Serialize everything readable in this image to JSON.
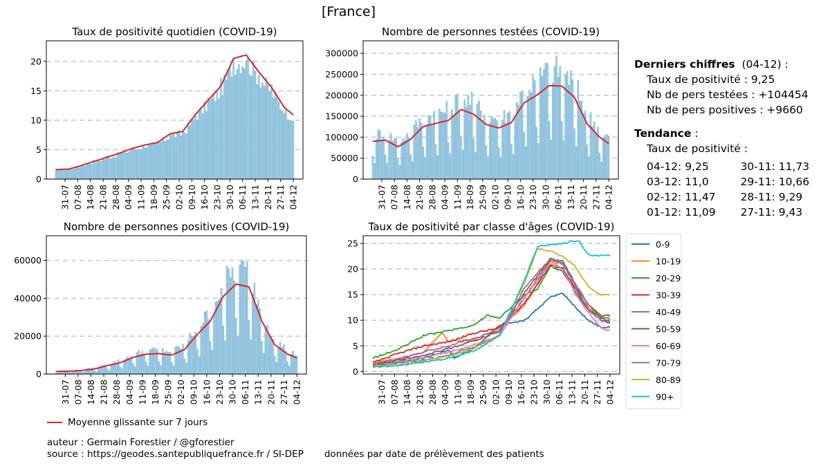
{
  "suptitle": "[France]",
  "colors": {
    "bar": "#9ecae1",
    "bar_edge": "#6baed6",
    "rolling": "#d62728",
    "grid": "#c8c8c8"
  },
  "date_ticks": [
    "31-07",
    "07-08",
    "14-08",
    "21-08",
    "28-08",
    "04-09",
    "11-09",
    "18-09",
    "25-09",
    "02-10",
    "09-10",
    "16-10",
    "23-10",
    "30-10",
    "06-11",
    "13-11",
    "20-11",
    "27-11",
    "04-12"
  ],
  "chart_data": [
    {
      "type": "bar",
      "title": "Taux de positivité quotidien (COVID-19)",
      "ylim": [
        0,
        23.5
      ],
      "yticks": [
        0,
        5,
        10,
        15,
        20
      ],
      "grid": true,
      "x_start": "2020-07-26",
      "x_end": "2020-12-04",
      "rolling_label": "Moyenne glissante sur 7 jours",
      "anchors": [
        [
          0,
          1.6
        ],
        [
          7,
          1.7
        ],
        [
          14,
          2.3
        ],
        [
          21,
          3.0
        ],
        [
          28,
          3.7
        ],
        [
          35,
          4.4
        ],
        [
          42,
          5.2
        ],
        [
          49,
          5.8
        ],
        [
          56,
          6.2
        ],
        [
          63,
          7.7
        ],
        [
          70,
          8.1
        ],
        [
          77,
          11.0
        ],
        [
          84,
          13.4
        ],
        [
          91,
          15.8
        ],
        [
          98,
          20.5
        ],
        [
          105,
          21.1
        ],
        [
          112,
          18.2
        ],
        [
          119,
          15.6
        ],
        [
          126,
          12.2
        ],
        [
          131,
          10.9
        ],
        [
          133,
          10.8
        ]
      ]
    },
    {
      "type": "bar",
      "title": "Nombre de personnes testées (COVID-19)",
      "ylim": [
        0,
        330000
      ],
      "yticks": [
        0,
        50000,
        100000,
        150000,
        200000,
        250000,
        300000
      ],
      "grid": true,
      "x_start": "2020-07-26",
      "x_end": "2020-12-04",
      "anchors": [
        [
          0,
          90000
        ],
        [
          7,
          93000
        ],
        [
          14,
          77000
        ],
        [
          21,
          95000
        ],
        [
          28,
          125000
        ],
        [
          35,
          133000
        ],
        [
          42,
          140000
        ],
        [
          49,
          166000
        ],
        [
          56,
          155000
        ],
        [
          63,
          130000
        ],
        [
          70,
          122000
        ],
        [
          77,
          135000
        ],
        [
          84,
          182000
        ],
        [
          91,
          200000
        ],
        [
          98,
          223000
        ],
        [
          105,
          222000
        ],
        [
          112,
          195000
        ],
        [
          119,
          132000
        ],
        [
          126,
          100000
        ],
        [
          131,
          85000
        ],
        [
          133,
          78000
        ]
      ]
    },
    {
      "type": "bar",
      "title": "Nombre de personnes positives (COVID-19)",
      "ylim": [
        0,
        73000
      ],
      "yticks": [
        0,
        20000,
        40000,
        60000
      ],
      "grid": true,
      "x_start": "2020-07-26",
      "x_end": "2020-12-04",
      "anchors": [
        [
          0,
          1400
        ],
        [
          7,
          1500
        ],
        [
          14,
          1900
        ],
        [
          21,
          2700
        ],
        [
          28,
          4500
        ],
        [
          35,
          6000
        ],
        [
          42,
          8800
        ],
        [
          49,
          10500
        ],
        [
          56,
          10800
        ],
        [
          63,
          10000
        ],
        [
          70,
          13000
        ],
        [
          77,
          21000
        ],
        [
          84,
          28000
        ],
        [
          91,
          41000
        ],
        [
          98,
          47500
        ],
        [
          105,
          46000
        ],
        [
          112,
          28000
        ],
        [
          119,
          15500
        ],
        [
          126,
          10500
        ],
        [
          131,
          8600
        ],
        [
          133,
          8300
        ]
      ]
    },
    {
      "type": "line",
      "title": "Taux de positivité par classe d'âges (COVID-19)",
      "ylim": [
        -0.5,
        26.5
      ],
      "yticks": [
        0,
        5,
        10,
        15,
        20,
        25
      ],
      "grid": true,
      "x_start": "2020-07-26",
      "x_end": "2020-12-04",
      "legend_position": "outside-right",
      "series": [
        {
          "name": "0-9",
          "color": "#1f77b4",
          "anchors": [
            [
              0,
              1.2
            ],
            [
              28,
              2.6
            ],
            [
              42,
              4.2
            ],
            [
              45,
              2.6
            ],
            [
              56,
              4.5
            ],
            [
              70,
              9.0
            ],
            [
              84,
              10.0
            ],
            [
              98,
              14.5
            ],
            [
              105,
              15.3
            ],
            [
              112,
              12.5
            ],
            [
              119,
              10.0
            ],
            [
              126,
              8.6
            ],
            [
              133,
              8.7
            ]
          ]
        },
        {
          "name": "10-19",
          "color": "#ff7f0e",
          "anchors": [
            [
              0,
              1.8
            ],
            [
              14,
              2.5
            ],
            [
              28,
              3.8
            ],
            [
              38,
              7.5
            ],
            [
              42,
              6.0
            ],
            [
              56,
              6.2
            ],
            [
              70,
              8.5
            ],
            [
              84,
              13.0
            ],
            [
              98,
              21.5
            ],
            [
              105,
              20.0
            ],
            [
              112,
              16.0
            ],
            [
              119,
              12.5
            ],
            [
              126,
              11.0
            ],
            [
              133,
              10.9
            ]
          ]
        },
        {
          "name": "20-29",
          "color": "#2ca02c",
          "anchors": [
            [
              0,
              2.6
            ],
            [
              14,
              4.3
            ],
            [
              28,
              7.0
            ],
            [
              42,
              8.0
            ],
            [
              56,
              9.0
            ],
            [
              63,
              11.0
            ],
            [
              70,
              10.5
            ],
            [
              84,
              15.0
            ],
            [
              91,
              16.0
            ],
            [
              98,
              20.5
            ],
            [
              105,
              19.5
            ],
            [
              112,
              15.5
            ],
            [
              119,
              12.0
            ],
            [
              126,
              10.5
            ],
            [
              133,
              10.2
            ]
          ]
        },
        {
          "name": "30-39",
          "color": "#d62728",
          "anchors": [
            [
              0,
              1.7
            ],
            [
              14,
              3.5
            ],
            [
              28,
              5.0
            ],
            [
              42,
              5.8
            ],
            [
              56,
              7.5
            ],
            [
              70,
              8.5
            ],
            [
              84,
              13.5
            ],
            [
              98,
              20.7
            ],
            [
              105,
              20.2
            ],
            [
              112,
              16.0
            ],
            [
              119,
              12.0
            ],
            [
              126,
              10.0
            ],
            [
              133,
              9.2
            ]
          ]
        },
        {
          "name": "40-49",
          "color": "#9467bd",
          "anchors": [
            [
              0,
              1.4
            ],
            [
              14,
              2.4
            ],
            [
              28,
              3.8
            ],
            [
              42,
              5.0
            ],
            [
              56,
              6.5
            ],
            [
              70,
              8.0
            ],
            [
              84,
              14.5
            ],
            [
              98,
              21.8
            ],
            [
              105,
              21.0
            ],
            [
              112,
              16.5
            ],
            [
              119,
              12.0
            ],
            [
              126,
              10.0
            ],
            [
              133,
              9.0
            ]
          ]
        },
        {
          "name": "50-59",
          "color": "#8c564b",
          "anchors": [
            [
              0,
              1.3
            ],
            [
              14,
              2.2
            ],
            [
              28,
              3.2
            ],
            [
              42,
              4.5
            ],
            [
              56,
              6.0
            ],
            [
              70,
              7.8
            ],
            [
              84,
              15.5
            ],
            [
              98,
              21.9
            ],
            [
              105,
              21.5
            ],
            [
              112,
              17.0
            ],
            [
              119,
              13.0
            ],
            [
              126,
              10.5
            ],
            [
              133,
              9.5
            ]
          ]
        },
        {
          "name": "60-69",
          "color": "#e377c2",
          "anchors": [
            [
              0,
              1.1
            ],
            [
              14,
              1.8
            ],
            [
              28,
              2.8
            ],
            [
              42,
              3.8
            ],
            [
              56,
              5.2
            ],
            [
              70,
              7.0
            ],
            [
              84,
              14.5
            ],
            [
              98,
              21.0
            ],
            [
              105,
              20.0
            ],
            [
              112,
              15.0
            ],
            [
              119,
              11.5
            ],
            [
              126,
              8.5
            ],
            [
              133,
              7.7
            ]
          ]
        },
        {
          "name": "70-79",
          "color": "#7f7f7f",
          "anchors": [
            [
              0,
              1.0
            ],
            [
              14,
              1.6
            ],
            [
              28,
              2.2
            ],
            [
              42,
              3.2
            ],
            [
              56,
              4.8
            ],
            [
              70,
              7.0
            ],
            [
              84,
              16.5
            ],
            [
              98,
              22.0
            ],
            [
              105,
              21.0
            ],
            [
              112,
              17.0
            ],
            [
              119,
              13.0
            ],
            [
              126,
              11.0
            ],
            [
              133,
              10.8
            ]
          ]
        },
        {
          "name": "80-89",
          "color": "#bcbd22",
          "anchors": [
            [
              0,
              0.9
            ],
            [
              14,
              1.3
            ],
            [
              28,
              2.0
            ],
            [
              42,
              3.0
            ],
            [
              56,
              4.5
            ],
            [
              70,
              7.0
            ],
            [
              84,
              17.5
            ],
            [
              91,
              24.0
            ],
            [
              98,
              23.5
            ],
            [
              105,
              22.5
            ],
            [
              112,
              20.5
            ],
            [
              119,
              16.5
            ],
            [
              126,
              15.0
            ],
            [
              133,
              14.9
            ]
          ]
        },
        {
          "name": "90+",
          "color": "#17becf",
          "anchors": [
            [
              0,
              0.8
            ],
            [
              14,
              1.2
            ],
            [
              28,
              1.8
            ],
            [
              42,
              2.6
            ],
            [
              56,
              4.0
            ],
            [
              70,
              7.0
            ],
            [
              84,
              18.0
            ],
            [
              91,
              24.5
            ],
            [
              98,
              24.8
            ],
            [
              105,
              25.0
            ],
            [
              110,
              25.5
            ],
            [
              114,
              25.4
            ],
            [
              119,
              22.8
            ],
            [
              126,
              22.6
            ],
            [
              133,
              22.8
            ]
          ]
        }
      ]
    }
  ],
  "info": {
    "latest_label": "Derniers chiffres",
    "latest_date": "(04-12) :",
    "lines": [
      "Taux de positivité : 9,25",
      "Nb de pers testées : +104454",
      "Nb de pers positives : +9660"
    ],
    "trend_label": "Tendance",
    "trend_colon": " :",
    "trend_sub": "Taux de positivité :",
    "trend_left": [
      "04-12: 9,25",
      "03-12: 11,0",
      "02-12: 11,47",
      "01-12: 11,09"
    ],
    "trend_right": [
      "30-11: 11,73",
      "29-11: 10,66",
      "28-11: 9,29",
      "27-11: 9,43"
    ]
  },
  "footer": {
    "legend": "Moyenne glissante sur 7 jours",
    "author": "auteur : Germain Forestier / @gforestier",
    "source": "source : https://geodes.santepubliquefrance.fr / SI-DEP",
    "note": "données par date de prélèvement des patients"
  }
}
